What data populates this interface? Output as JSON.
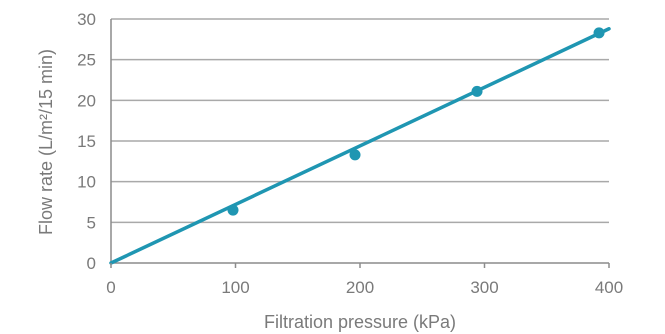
{
  "chart_data": {
    "type": "scatter",
    "xlabel": "Filtration pressure (kPa)",
    "ylabel": "Flow rate (L/m²/15 min)",
    "xlim": [
      0,
      400
    ],
    "ylim": [
      0,
      30
    ],
    "x_ticks": [
      "0",
      "100",
      "200",
      "300",
      "400"
    ],
    "y_ticks": [
      "0",
      "5",
      "10",
      "15",
      "20",
      "25",
      "30"
    ],
    "grid": "horizontal",
    "series": [
      {
        "type": "scatter",
        "color": "#1f96b2",
        "points": [
          {
            "x": 98,
            "y": 6.5
          },
          {
            "x": 196,
            "y": 13.3
          },
          {
            "x": 294,
            "y": 21.1
          },
          {
            "x": 392,
            "y": 28.3
          }
        ]
      },
      {
        "type": "line",
        "color": "#1f96b2",
        "points": [
          {
            "x": 0,
            "y": 0
          },
          {
            "x": 400,
            "y": 28.8
          }
        ]
      }
    ],
    "colors": {
      "grid": "#a9a9a9",
      "axis": "#8c8c8c",
      "text": "#7a7a7a"
    }
  }
}
